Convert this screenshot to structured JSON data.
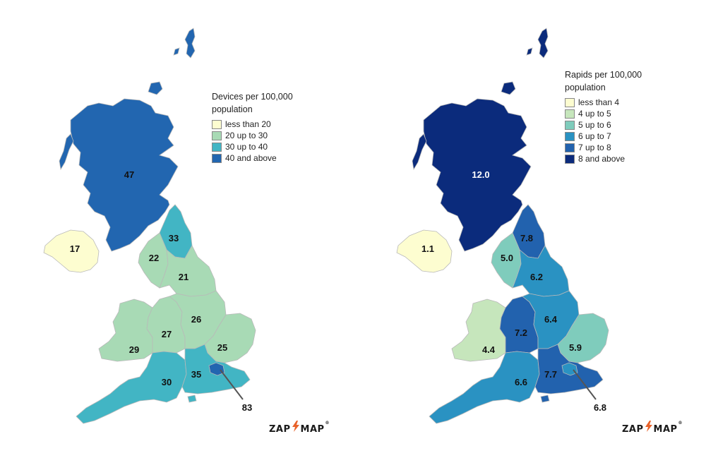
{
  "left_map": {
    "legend": {
      "title": "Devices per 100,000 population",
      "items": [
        {
          "label": "less than 20",
          "color": "#fdfdd0"
        },
        {
          "label": "20 up to 30",
          "color": "#a8dab5"
        },
        {
          "label": "30 up to 40",
          "color": "#42b5c4"
        },
        {
          "label": "40 and above",
          "color": "#2266b0"
        }
      ]
    },
    "regions": {
      "scotland": "47",
      "northern_ireland": "17",
      "north_east": "33",
      "north_west": "22",
      "yorkshire": "21",
      "wales": "29",
      "west_midlands": "27",
      "east_midlands": "26",
      "east_of_england": "25",
      "south_west": "30",
      "south_east": "35",
      "london": "83"
    },
    "logo": "ZAP MAP"
  },
  "right_map": {
    "legend": {
      "title": "Rapids per 100,000 population",
      "items": [
        {
          "label": "less than 4",
          "color": "#fdfdd0"
        },
        {
          "label": "4 up to 5",
          "color": "#c6e6bc"
        },
        {
          "label": "5 up to 6",
          "color": "#7fccbc"
        },
        {
          "label": "6 up to 7",
          "color": "#2a92c2"
        },
        {
          "label": "7 up to 8",
          "color": "#2262ae"
        },
        {
          "label": "8 and above",
          "color": "#0b2b7c"
        }
      ]
    },
    "regions": {
      "scotland": "12.0",
      "northern_ireland": "1.1",
      "north_east": "7.8",
      "north_west": "5.0",
      "yorkshire": "6.2",
      "wales": "4.4",
      "west_midlands": "7.2",
      "east_midlands": "6.4",
      "east_of_england": "5.9",
      "south_west": "6.6",
      "south_east": "7.7",
      "london": "6.8"
    },
    "logo": "ZAP MAP"
  },
  "colors": {
    "left": {
      "scotland": "#2266b0",
      "northern_ireland": "#fdfdd0",
      "north_east": "#42b5c4",
      "north_west": "#a8dab5",
      "yorkshire": "#a8dab5",
      "wales": "#a8dab5",
      "west_midlands": "#a8dab5",
      "east_midlands": "#a8dab5",
      "east_of_england": "#a8dab5",
      "south_west": "#42b5c4",
      "south_east": "#42b5c4",
      "london": "#2266b0"
    },
    "right": {
      "scotland": "#0b2b7c",
      "northern_ireland": "#fdfdd0",
      "north_east": "#2262ae",
      "north_west": "#7fccbc",
      "yorkshire": "#2a92c2",
      "wales": "#c6e6bc",
      "west_midlands": "#2262ae",
      "east_midlands": "#2a92c2",
      "east_of_england": "#7fccbc",
      "south_west": "#2a92c2",
      "south_east": "#2262ae",
      "london": "#2a92c2"
    },
    "logo_bolt": "#e8622a"
  }
}
